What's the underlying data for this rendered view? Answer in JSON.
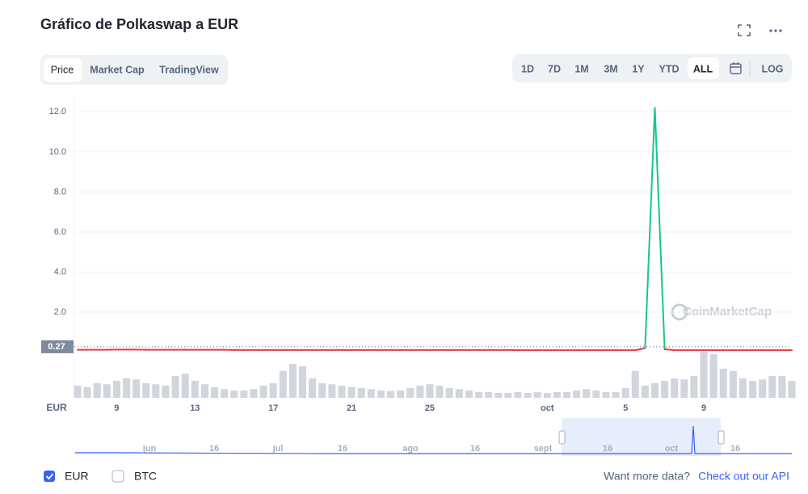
{
  "ui": {
    "title": "Gráfico de Polkaswap a EUR",
    "tabs": [
      "Price",
      "Market Cap",
      "TradingView"
    ],
    "ranges": [
      "1D",
      "7D",
      "1M",
      "3M",
      "1Y",
      "YTD",
      "ALL"
    ],
    "log": "LOG",
    "currencies": [
      "EUR",
      "BTC"
    ],
    "more": "Want more data?",
    "api": "Check out our API",
    "watermark": "CoinMarketCap",
    "navigator_labels": [
      "jun",
      "16",
      "jul",
      "16",
      "ago",
      "16",
      "sept",
      "16",
      "oct",
      "16"
    ]
  },
  "chart_data": {
    "type": "line",
    "axis_label": "EUR",
    "categories": [
      null,
      null,
      null,
      null,
      "9",
      null,
      null,
      null,
      null,
      null,
      null,
      null,
      "13",
      null,
      null,
      null,
      null,
      null,
      null,
      null,
      "17",
      null,
      null,
      null,
      null,
      null,
      null,
      null,
      "21",
      null,
      null,
      null,
      null,
      null,
      null,
      null,
      "25",
      null,
      null,
      null,
      null,
      null,
      null,
      null,
      null,
      null,
      null,
      null,
      "oct",
      null,
      null,
      null,
      null,
      null,
      null,
      null,
      "5",
      null,
      null,
      null,
      null,
      null,
      null,
      null,
      "9",
      null,
      null,
      null,
      null,
      null,
      null,
      null,
      null,
      null
    ],
    "series": [
      {
        "name": "EUR",
        "up_color": "#16c784",
        "down_color": "#ea3943",
        "values": [
          0.12,
          0.12,
          0.12,
          0.12,
          0.13,
          0.13,
          0.13,
          0.12,
          0.12,
          0.12,
          0.12,
          0.12,
          0.12,
          0.12,
          0.12,
          0.12,
          0.11,
          0.11,
          0.11,
          0.11,
          0.11,
          0.11,
          0.11,
          0.11,
          0.11,
          0.11,
          0.11,
          0.11,
          0.11,
          0.11,
          0.11,
          0.11,
          0.11,
          0.11,
          0.11,
          0.11,
          0.11,
          0.11,
          0.11,
          0.11,
          0.11,
          0.11,
          0.11,
          0.11,
          0.11,
          0.1,
          0.1,
          0.1,
          0.1,
          0.1,
          0.1,
          0.1,
          0.1,
          0.1,
          0.1,
          0.1,
          0.1,
          0.1,
          0.2,
          12.2,
          0.15,
          0.1,
          0.1,
          0.1,
          0.1,
          0.1,
          0.1,
          0.1,
          0.1,
          0.1,
          0.1,
          0.1,
          0.1,
          0.1
        ]
      }
    ],
    "volume": {
      "color": "#c5cbd4",
      "values": [
        25,
        22,
        30,
        28,
        35,
        40,
        38,
        30,
        28,
        25,
        45,
        50,
        35,
        28,
        22,
        18,
        15,
        15,
        18,
        25,
        30,
        55,
        70,
        65,
        40,
        30,
        28,
        25,
        22,
        20,
        18,
        15,
        14,
        15,
        20,
        25,
        28,
        25,
        20,
        18,
        15,
        12,
        12,
        10,
        10,
        12,
        10,
        12,
        10,
        12,
        12,
        15,
        18,
        15,
        12,
        12,
        20,
        55,
        25,
        30,
        35,
        40,
        38,
        45,
        95,
        90,
        60,
        55,
        40,
        35,
        38,
        45,
        45,
        35
      ]
    },
    "y2lim": [
      0,
      100
    ],
    "current": 0.27,
    "ylim": [
      0,
      12.9
    ],
    "yticks": [
      {
        "value": 2,
        "label": "2.0"
      },
      {
        "value": 4,
        "label": "4.0"
      },
      {
        "value": 6,
        "label": "6.0"
      },
      {
        "value": 8,
        "label": "8.0"
      },
      {
        "value": 10,
        "label": "10.0"
      },
      {
        "value": 12,
        "label": "12.0"
      }
    ],
    "grid": true
  }
}
